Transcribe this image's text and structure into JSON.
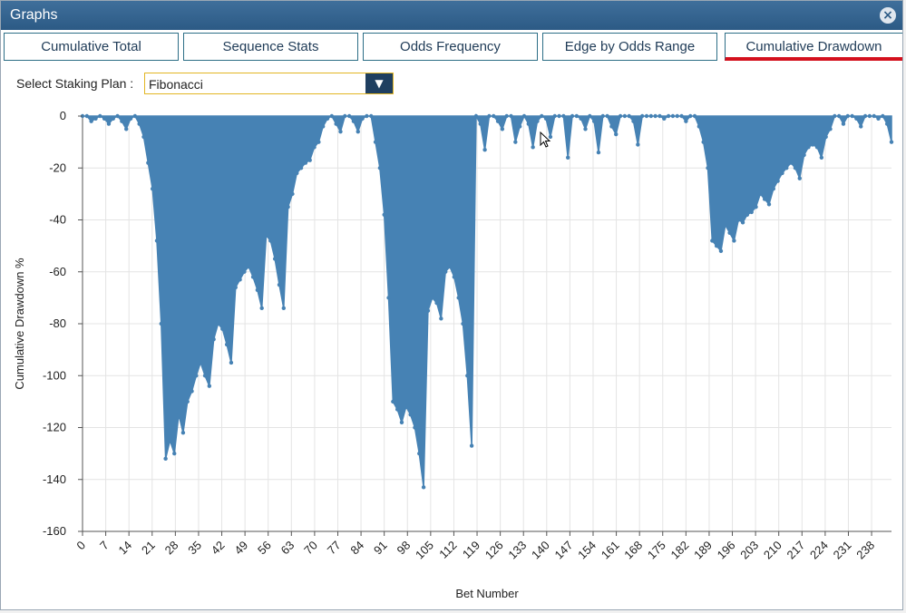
{
  "window": {
    "title": "Graphs",
    "close_icon": "close-icon"
  },
  "tabs": [
    {
      "label": "Cumulative Total",
      "active": false
    },
    {
      "label": "Sequence Stats",
      "active": false
    },
    {
      "label": "Odds Frequency",
      "active": false
    },
    {
      "label": "Edge by Odds Range",
      "active": false
    },
    {
      "label": "Cumulative Drawdown",
      "active": true
    }
  ],
  "staking": {
    "label": "Select Staking Plan :",
    "value": "Fibonacci",
    "caret_icon": "chevron-down-icon"
  },
  "colors": {
    "series": "#4682b4",
    "accent": "#d4101d",
    "titlebar": "#2c5a85"
  },
  "chart_data": {
    "type": "area",
    "title": "",
    "xlabel": "Bet Number",
    "ylabel": "Cumulative Drawdown %",
    "xlim": [
      0,
      244
    ],
    "ylim": [
      -160,
      0
    ],
    "x_ticks": [
      0,
      7,
      14,
      21,
      28,
      35,
      42,
      49,
      56,
      63,
      70,
      77,
      84,
      91,
      98,
      105,
      112,
      119,
      126,
      133,
      140,
      147,
      154,
      161,
      168,
      175,
      182,
      189,
      196,
      203,
      210,
      217,
      224,
      231,
      238
    ],
    "y_ticks": [
      0,
      -20,
      -40,
      -60,
      -80,
      -100,
      -120,
      -140,
      -160
    ],
    "grid": true,
    "series": [
      {
        "values": [
          0,
          0,
          -2,
          -1,
          0,
          -1,
          -3,
          -1,
          0,
          -2,
          -5,
          -1,
          0,
          -3,
          -8,
          -18,
          -28,
          -48,
          -80,
          -132,
          -125,
          -130,
          -115,
          -122,
          -110,
          -106,
          -100,
          -95,
          -100,
          -104,
          -86,
          -80,
          -82,
          -88,
          -95,
          -66,
          -63,
          -60,
          -58,
          -62,
          -67,
          -74,
          -46,
          -48,
          -55,
          -65,
          -74,
          -35,
          -30,
          -22,
          -20,
          -18,
          -17,
          -12,
          -10,
          -4,
          -1,
          0,
          -3,
          -6,
          0,
          0,
          -2,
          -6,
          -1,
          0,
          0,
          -10,
          -20,
          -38,
          -70,
          -110,
          -113,
          -118,
          -112,
          -115,
          -120,
          -130,
          -143,
          -75,
          -70,
          -72,
          -78,
          -60,
          -58,
          -62,
          -70,
          -80,
          -100,
          -127,
          0,
          -3,
          -13,
          0,
          0,
          -2,
          -5,
          0,
          0,
          -10,
          -4,
          0,
          -3,
          -12,
          -2,
          0,
          -1,
          -8,
          0,
          0,
          0,
          -16,
          0,
          0,
          -1,
          -5,
          0,
          -2,
          -14,
          0,
          0,
          -4,
          -7,
          0,
          0,
          0,
          -2,
          -11,
          0,
          0,
          0,
          0,
          0,
          -1,
          0,
          0,
          0,
          0,
          -2,
          0,
          0,
          -4,
          -10,
          -20,
          -48,
          -50,
          -52,
          -42,
          -45,
          -48,
          -40,
          -41,
          -38,
          -37,
          -35,
          -30,
          -32,
          -34,
          -28,
          -25,
          -22,
          -20,
          -18,
          -20,
          -24,
          -15,
          -12,
          -11,
          -12,
          -16,
          -8,
          -5,
          0,
          0,
          -3,
          0,
          0,
          -1,
          -4,
          0,
          0,
          0,
          -1,
          0,
          -3,
          -10
        ]
      }
    ]
  }
}
